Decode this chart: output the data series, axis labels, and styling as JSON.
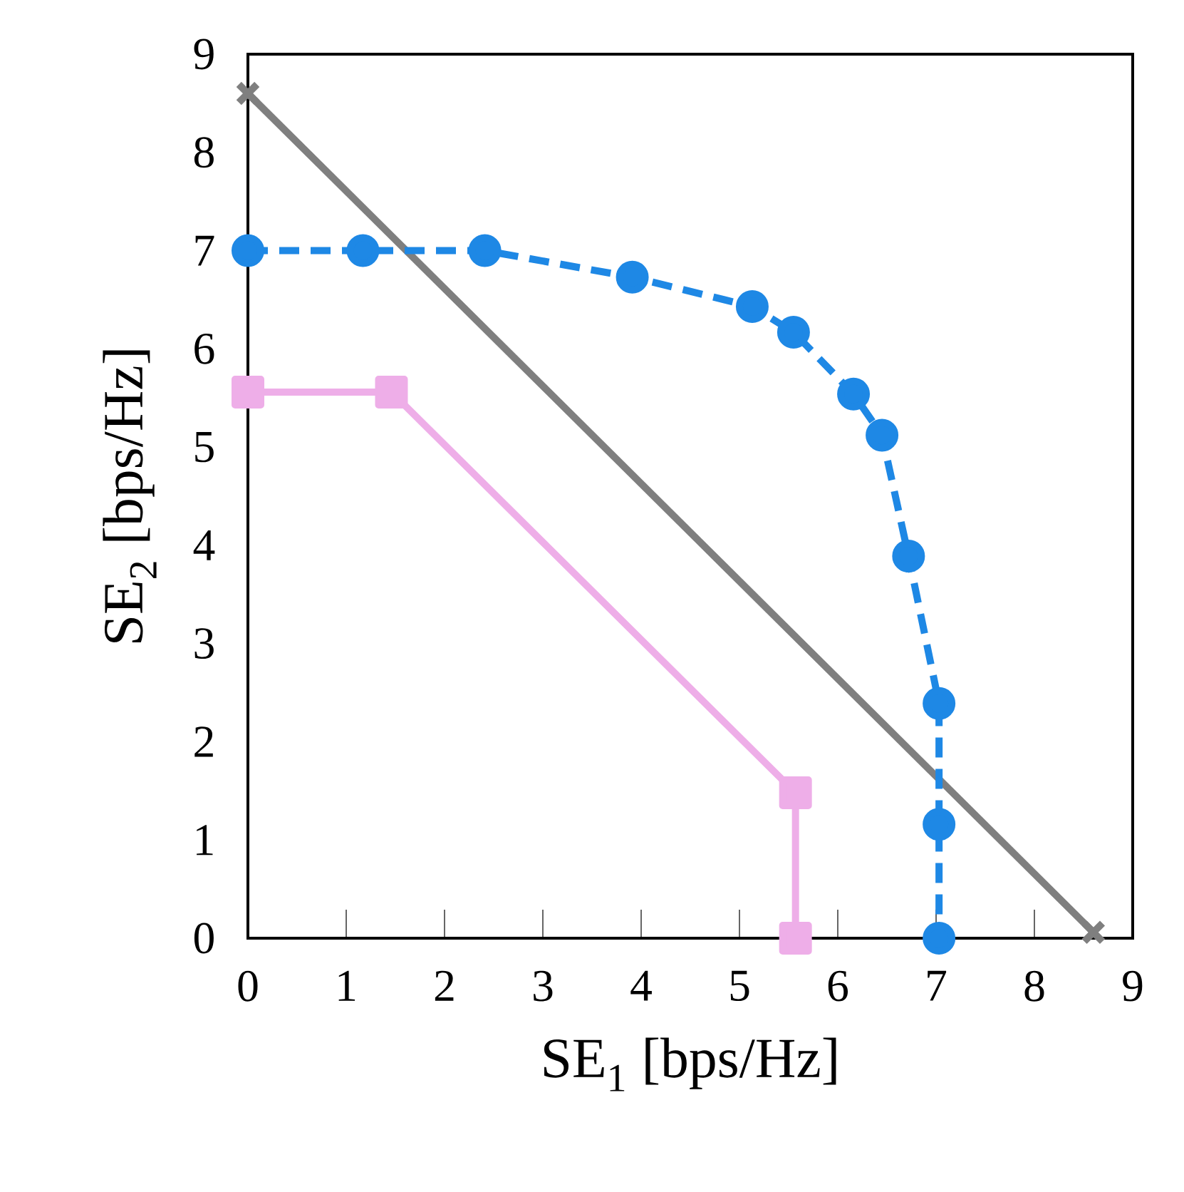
{
  "chart_data": {
    "type": "line",
    "xlabel": "SE$_{1}$ [bps/Hz]",
    "ylabel": "SE$_{2}$ [bps/Hz]",
    "xlim": [
      0,
      9
    ],
    "ylim": [
      0,
      9
    ],
    "xticks": [
      0,
      1,
      2,
      3,
      4,
      5,
      6,
      7,
      8,
      9
    ],
    "yticks": [
      0,
      1,
      2,
      3,
      4,
      5,
      6,
      7,
      8,
      9
    ],
    "series": [
      {
        "color": "#7f7f7f",
        "marker": "cross",
        "line_style": "solid",
        "x": [
          0,
          8.6
        ],
        "values": [
          8.6,
          0.06
        ]
      },
      {
        "color": "#1e88e5",
        "marker": "circle",
        "line_style": "dashed",
        "x": [
          0,
          1.17,
          2.41,
          3.91,
          5.13,
          5.55,
          6.16,
          6.45,
          6.72,
          7.03,
          7.03,
          7.03
        ],
        "values": [
          7.0,
          7.0,
          7.0,
          6.73,
          6.43,
          6.17,
          5.54,
          5.12,
          3.89,
          2.39,
          1.16,
          0
        ]
      },
      {
        "color": "#eeaee8",
        "marker": "square",
        "line_style": "solid",
        "x": [
          0,
          1.46,
          5.57,
          5.57
        ],
        "values": [
          5.56,
          5.56,
          1.48,
          0
        ]
      }
    ]
  }
}
